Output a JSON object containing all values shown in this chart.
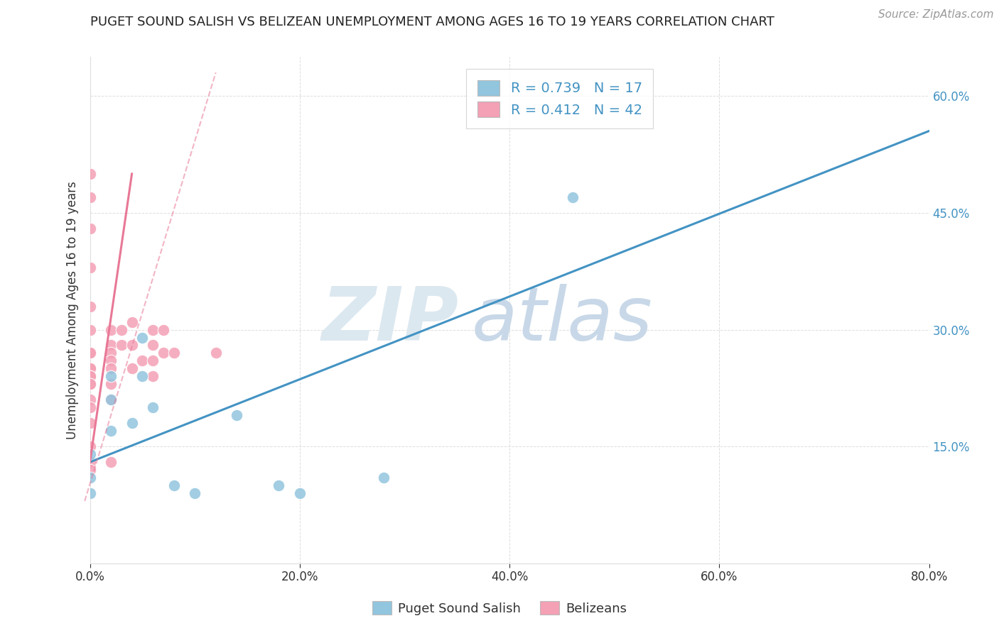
{
  "title": "PUGET SOUND SALISH VS BELIZEAN UNEMPLOYMENT AMONG AGES 16 TO 19 YEARS CORRELATION CHART",
  "source": "Source: ZipAtlas.com",
  "ylabel": "Unemployment Among Ages 16 to 19 years",
  "xlim": [
    0.0,
    0.8
  ],
  "ylim": [
    0.0,
    0.65
  ],
  "xticks": [
    0.0,
    0.2,
    0.4,
    0.6,
    0.8
  ],
  "xticklabels": [
    "0.0%",
    "20.0%",
    "40.0%",
    "60.0%",
    "80.0%"
  ],
  "yticks_left": [
    0.15,
    0.3,
    0.45,
    0.6
  ],
  "right_yticks": [
    0.15,
    0.3,
    0.45,
    0.6
  ],
  "right_yticklabels": [
    "15.0%",
    "30.0%",
    "45.0%",
    "60.0%"
  ],
  "color_blue": "#92c5de",
  "color_pink": "#f4a0b5",
  "line_blue": "#4393c3",
  "line_pink": "#e87896",
  "series1_name": "Puget Sound Salish",
  "series2_name": "Belizeans",
  "legend_text1": "R = 0.739   N = 17",
  "legend_text2": "R = 0.412   N = 42",
  "puget_x": [
    0.0,
    0.0,
    0.0,
    0.02,
    0.02,
    0.02,
    0.04,
    0.05,
    0.05,
    0.06,
    0.08,
    0.1,
    0.14,
    0.18,
    0.2,
    0.28,
    0.46
  ],
  "puget_y": [
    0.14,
    0.11,
    0.09,
    0.24,
    0.21,
    0.17,
    0.18,
    0.29,
    0.24,
    0.2,
    0.1,
    0.09,
    0.19,
    0.1,
    0.09,
    0.11,
    0.47
  ],
  "belizean_x": [
    0.0,
    0.0,
    0.0,
    0.0,
    0.0,
    0.0,
    0.0,
    0.0,
    0.0,
    0.0,
    0.0,
    0.0,
    0.0,
    0.0,
    0.0,
    0.0,
    0.0,
    0.0,
    0.0,
    0.0,
    0.02,
    0.02,
    0.02,
    0.02,
    0.02,
    0.02,
    0.02,
    0.02,
    0.03,
    0.03,
    0.04,
    0.04,
    0.04,
    0.05,
    0.06,
    0.06,
    0.06,
    0.06,
    0.07,
    0.07,
    0.08,
    0.12
  ],
  "belizean_y": [
    0.5,
    0.47,
    0.43,
    0.38,
    0.33,
    0.3,
    0.27,
    0.27,
    0.25,
    0.25,
    0.24,
    0.24,
    0.23,
    0.23,
    0.21,
    0.2,
    0.18,
    0.15,
    0.13,
    0.12,
    0.3,
    0.28,
    0.27,
    0.26,
    0.25,
    0.23,
    0.21,
    0.13,
    0.3,
    0.28,
    0.31,
    0.28,
    0.25,
    0.26,
    0.3,
    0.28,
    0.26,
    0.24,
    0.3,
    0.27,
    0.27,
    0.27
  ],
  "blue_line": [
    [
      0.0,
      0.8
    ],
    [
      0.13,
      0.555
    ]
  ],
  "pink_line_solid": [
    [
      0.0,
      0.04
    ],
    [
      0.13,
      0.5
    ]
  ],
  "pink_line_dash": [
    [
      -0.005,
      0.12
    ],
    [
      0.08,
      0.63
    ]
  ],
  "background_color": "#ffffff",
  "text_color": "#333333",
  "title_color": "#222222",
  "tick_color_right": "#4393c3",
  "grid_color": "#dddddd",
  "watermark_zip_color": "#dce8f0",
  "watermark_atlas_color": "#c8d8e8"
}
